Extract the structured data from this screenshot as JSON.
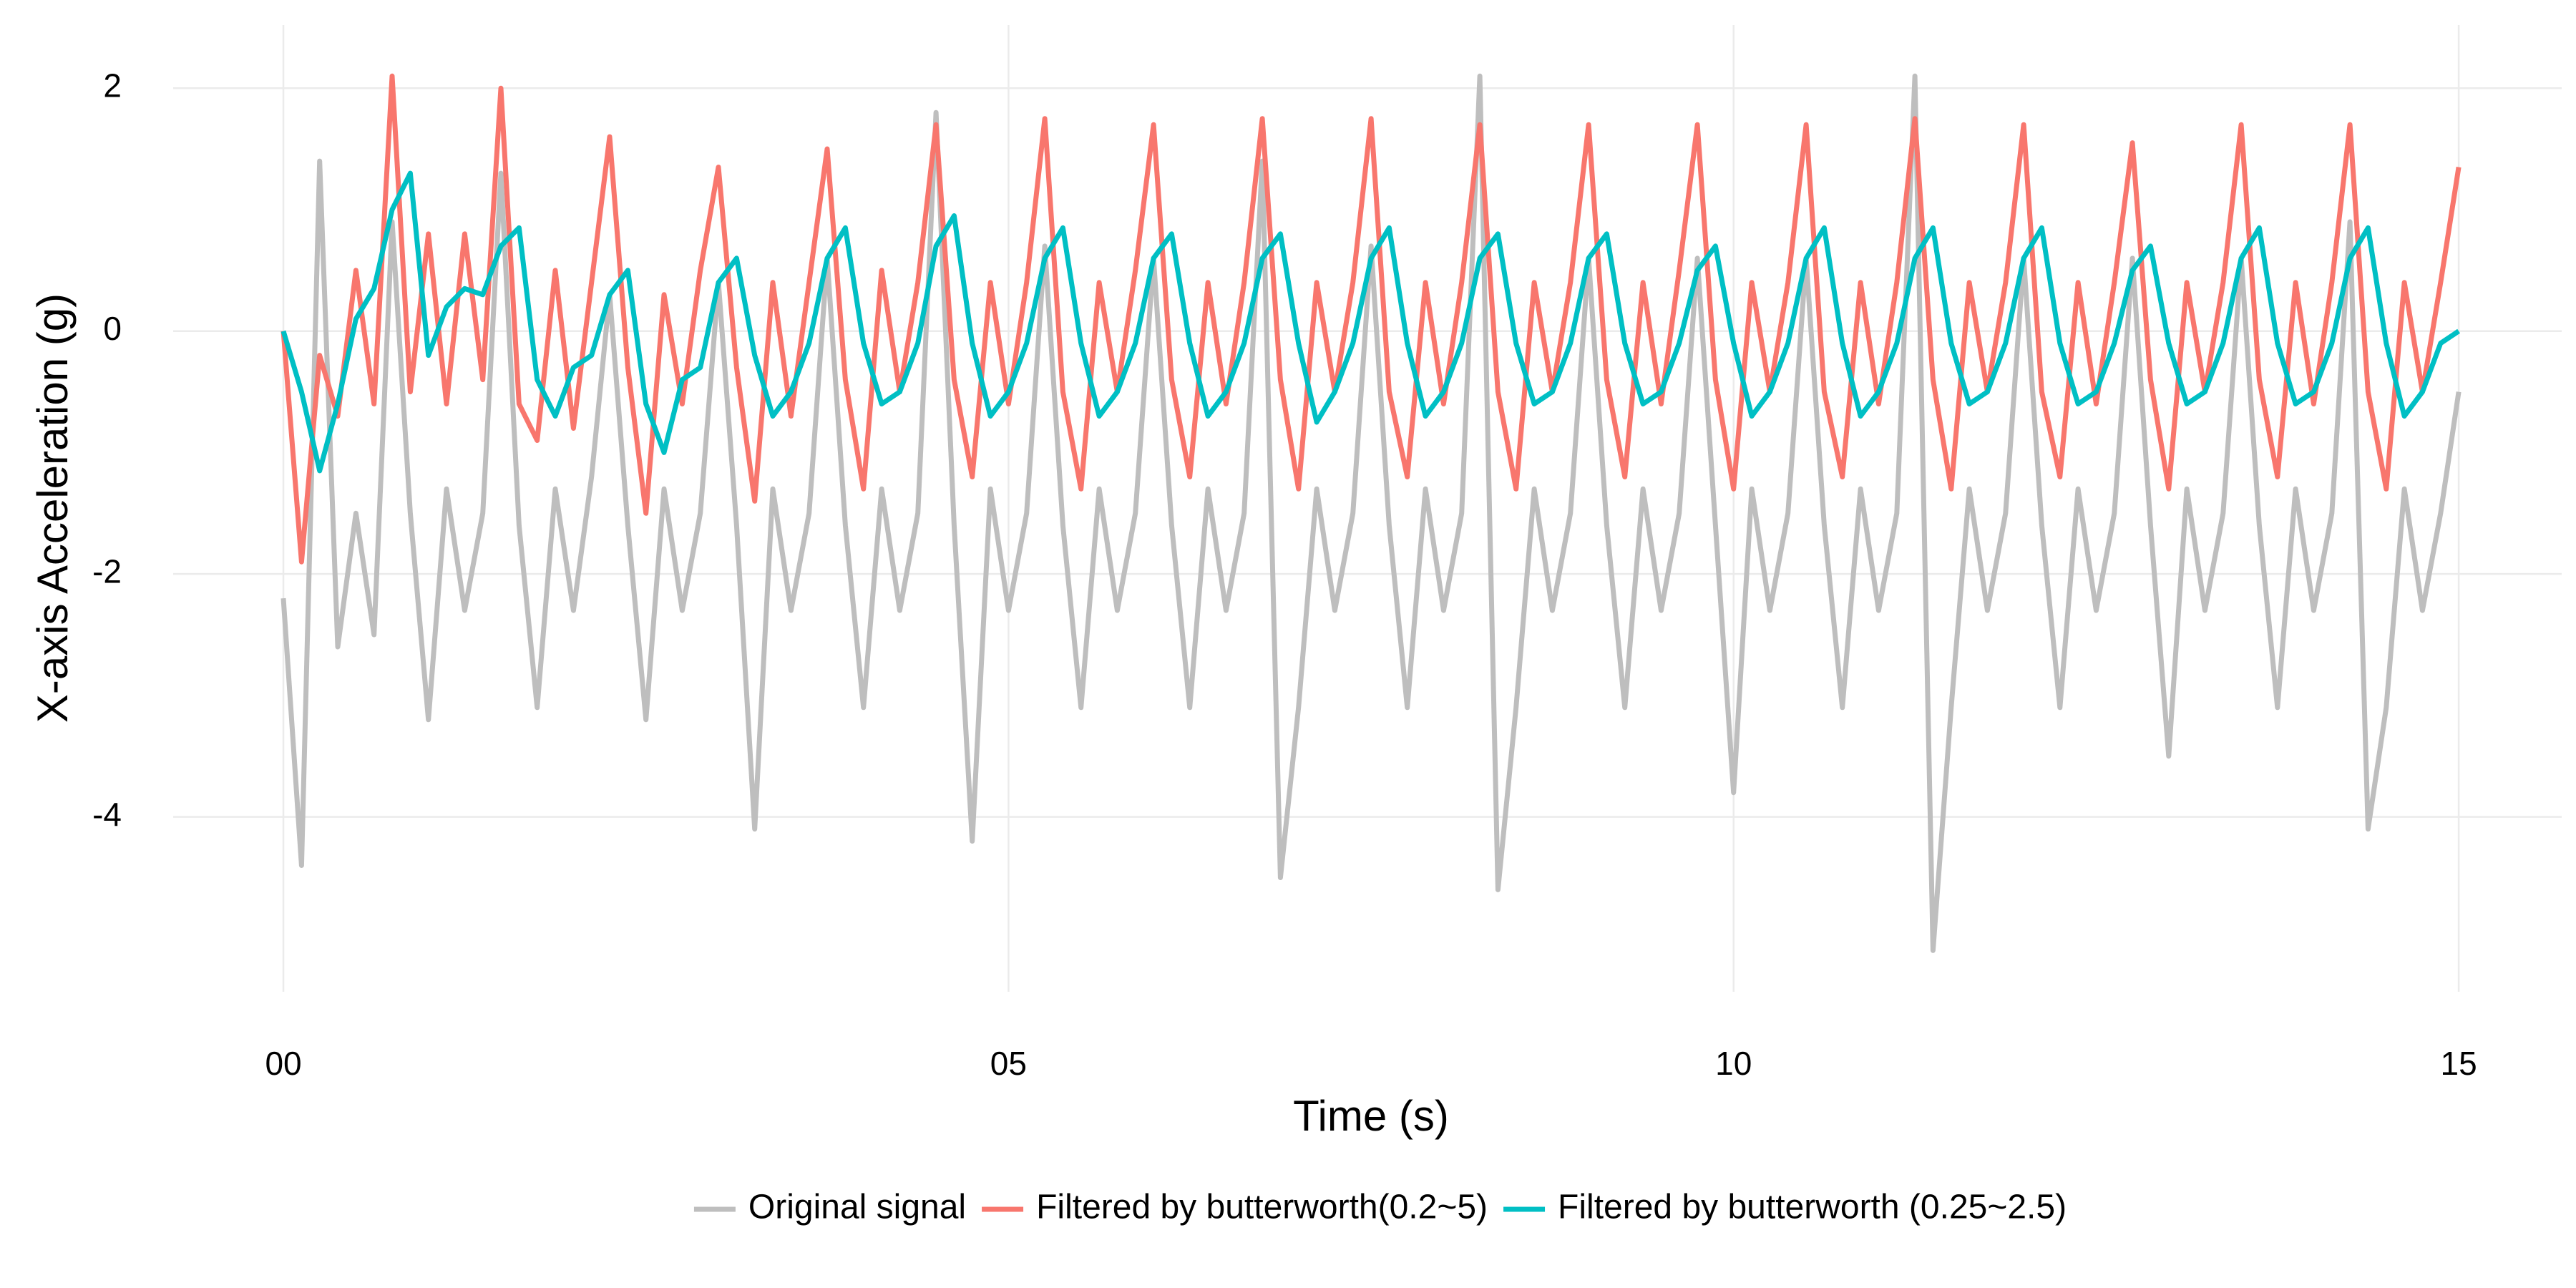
{
  "chart_data": {
    "type": "line",
    "x_label": "Time (s)",
    "y_label": "X-axis Acceleration (g)",
    "xlim": [
      -0.76,
      15.71
    ],
    "ylim": [
      -5.44,
      2.52
    ],
    "xticks": [
      {
        "value": 0,
        "label": "00"
      },
      {
        "value": 5,
        "label": "05"
      },
      {
        "value": 10,
        "label": "10"
      },
      {
        "value": 15,
        "label": "15"
      }
    ],
    "yticks": [
      -4,
      -2,
      0,
      2
    ],
    "grid": true,
    "legend_position": "bottom",
    "x": [
      0,
      0.125,
      0.25,
      0.375,
      0.5,
      0.625,
      0.75,
      0.875,
      1,
      1.125,
      1.25,
      1.375,
      1.5,
      1.625,
      1.75,
      1.875,
      2,
      2.125,
      2.25,
      2.375,
      2.5,
      2.625,
      2.75,
      2.875,
      3,
      3.125,
      3.25,
      3.375,
      3.5,
      3.625,
      3.75,
      3.875,
      4,
      4.125,
      4.25,
      4.375,
      4.5,
      4.625,
      4.75,
      4.875,
      5,
      5.125,
      5.25,
      5.375,
      5.5,
      5.625,
      5.75,
      5.875,
      6,
      6.125,
      6.25,
      6.375,
      6.5,
      6.625,
      6.75,
      6.875,
      7,
      7.125,
      7.25,
      7.375,
      7.5,
      7.625,
      7.75,
      7.875,
      8,
      8.125,
      8.25,
      8.375,
      8.5,
      8.625,
      8.75,
      8.875,
      9,
      9.125,
      9.25,
      9.375,
      9.5,
      9.625,
      9.75,
      9.875,
      10,
      10.125,
      10.25,
      10.375,
      10.5,
      10.625,
      10.75,
      10.875,
      11,
      11.125,
      11.25,
      11.375,
      11.5,
      11.625,
      11.75,
      11.875,
      12,
      12.125,
      12.25,
      12.375,
      12.5,
      12.625,
      12.75,
      12.875,
      13,
      13.125,
      13.25,
      13.375,
      13.5,
      13.625,
      13.75,
      13.875,
      14,
      14.125,
      14.25,
      14.375,
      14.5,
      14.625,
      14.75,
      14.875,
      15
    ],
    "series": [
      {
        "name": "Original signal",
        "color": "#bebebe",
        "values": [
          -2.2,
          -4.4,
          1.4,
          -2.6,
          -1.5,
          -2.5,
          0.9,
          -1.5,
          -3.2,
          -1.3,
          -2.3,
          -1.5,
          1.3,
          -1.6,
          -3.1,
          -1.3,
          -2.3,
          -1.2,
          0.3,
          -1.6,
          -3.2,
          -1.3,
          -2.3,
          -1.5,
          0.4,
          -1.6,
          -4.1,
          -1.3,
          -2.3,
          -1.5,
          0.6,
          -1.6,
          -3.1,
          -1.3,
          -2.3,
          -1.5,
          1.8,
          -1.6,
          -4.2,
          -1.3,
          -2.3,
          -1.5,
          0.7,
          -1.6,
          -3.1,
          -1.3,
          -2.3,
          -1.5,
          0.6,
          -1.6,
          -3.1,
          -1.3,
          -2.3,
          -1.5,
          1.4,
          -4.5,
          -3.1,
          -1.3,
          -2.3,
          -1.5,
          0.7,
          -1.6,
          -3.1,
          -1.3,
          -2.3,
          -1.5,
          2.1,
          -4.6,
          -3.1,
          -1.3,
          -2.3,
          -1.5,
          0.6,
          -1.6,
          -3.1,
          -1.3,
          -2.3,
          -1.5,
          0.6,
          -1.6,
          -3.8,
          -1.3,
          -2.3,
          -1.5,
          0.6,
          -1.6,
          -3.1,
          -1.3,
          -2.3,
          -1.5,
          2.1,
          -5.1,
          -3.1,
          -1.3,
          -2.3,
          -1.5,
          0.6,
          -1.6,
          -3.1,
          -1.3,
          -2.3,
          -1.5,
          0.6,
          -1.6,
          -3.5,
          -1.3,
          -2.3,
          -1.5,
          0.6,
          -1.6,
          -3.1,
          -1.3,
          -2.3,
          -1.5,
          0.9,
          -4.1,
          -3.1,
          -1.3,
          -2.3,
          -1.5,
          -0.5
        ]
      },
      {
        "name": "Filtered by butterworth(0.2~5)",
        "color": "#f8766d",
        "values": [
          0,
          -1.9,
          -0.2,
          -0.7,
          0.5,
          -0.6,
          2.1,
          -0.5,
          0.8,
          -0.6,
          0.8,
          -0.4,
          2.0,
          -0.6,
          -0.9,
          0.5,
          -0.8,
          0.4,
          1.6,
          -0.3,
          -1.5,
          0.3,
          -0.6,
          0.5,
          1.35,
          -0.3,
          -1.4,
          0.4,
          -0.7,
          0.4,
          1.5,
          -0.4,
          -1.3,
          0.5,
          -0.5,
          0.4,
          1.7,
          -0.4,
          -1.2,
          0.4,
          -0.6,
          0.4,
          1.75,
          -0.5,
          -1.3,
          0.4,
          -0.5,
          0.5,
          1.7,
          -0.4,
          -1.2,
          0.4,
          -0.6,
          0.4,
          1.75,
          -0.4,
          -1.3,
          0.4,
          -0.5,
          0.4,
          1.75,
          -0.5,
          -1.2,
          0.4,
          -0.6,
          0.4,
          1.7,
          -0.5,
          -1.3,
          0.4,
          -0.5,
          0.4,
          1.7,
          -0.4,
          -1.2,
          0.4,
          -0.6,
          0.5,
          1.7,
          -0.4,
          -1.3,
          0.4,
          -0.5,
          0.4,
          1.7,
          -0.5,
          -1.2,
          0.4,
          -0.6,
          0.4,
          1.75,
          -0.4,
          -1.3,
          0.4,
          -0.5,
          0.4,
          1.7,
          -0.5,
          -1.2,
          0.4,
          -0.6,
          0.4,
          1.55,
          -0.4,
          -1.3,
          0.4,
          -0.5,
          0.4,
          1.7,
          -0.4,
          -1.2,
          0.4,
          -0.6,
          0.4,
          1.7,
          -0.5,
          -1.3,
          0.4,
          -0.5,
          0.4,
          1.35
        ]
      },
      {
        "name": "Filtered by butterworth (0.25~2.5)",
        "color": "#00bfc4",
        "values": [
          0,
          -0.5,
          -1.15,
          -0.6,
          0.1,
          0.35,
          1.0,
          1.3,
          -0.2,
          0.2,
          0.35,
          0.3,
          0.7,
          0.85,
          -0.4,
          -0.7,
          -0.3,
          -0.2,
          0.3,
          0.5,
          -0.6,
          -1.0,
          -0.4,
          -0.3,
          0.4,
          0.6,
          -0.2,
          -0.7,
          -0.5,
          -0.1,
          0.6,
          0.85,
          -0.1,
          -0.6,
          -0.5,
          -0.1,
          0.7,
          0.95,
          -0.1,
          -0.7,
          -0.5,
          -0.1,
          0.6,
          0.85,
          -0.1,
          -0.7,
          -0.5,
          -0.1,
          0.6,
          0.8,
          -0.1,
          -0.7,
          -0.5,
          -0.1,
          0.6,
          0.8,
          -0.1,
          -0.75,
          -0.5,
          -0.1,
          0.6,
          0.85,
          -0.1,
          -0.7,
          -0.5,
          -0.1,
          0.6,
          0.8,
          -0.1,
          -0.6,
          -0.5,
          -0.1,
          0.6,
          0.8,
          -0.1,
          -0.6,
          -0.5,
          -0.1,
          0.5,
          0.7,
          -0.1,
          -0.7,
          -0.5,
          -0.1,
          0.6,
          0.85,
          -0.1,
          -0.7,
          -0.5,
          -0.1,
          0.6,
          0.85,
          -0.1,
          -0.6,
          -0.5,
          -0.1,
          0.6,
          0.85,
          -0.1,
          -0.6,
          -0.5,
          -0.1,
          0.5,
          0.7,
          -0.1,
          -0.6,
          -0.5,
          -0.1,
          0.6,
          0.85,
          -0.1,
          -0.6,
          -0.5,
          -0.1,
          0.6,
          0.85,
          -0.1,
          -0.7,
          -0.5,
          -0.1,
          0.0
        ]
      }
    ]
  }
}
